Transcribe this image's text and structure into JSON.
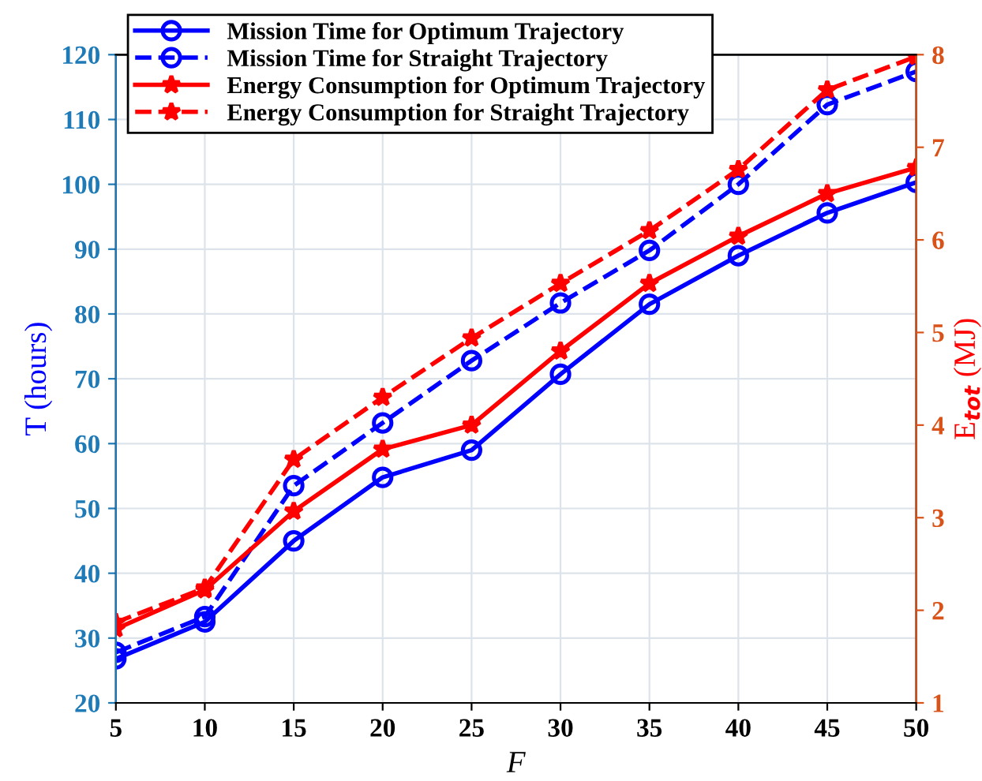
{
  "chart_data": {
    "type": "line",
    "xlabel": "F",
    "ylabel": "T (hours)",
    "y2label": "E$_{tot}$ (MJ)",
    "x": [
      5,
      10,
      15,
      20,
      25,
      30,
      35,
      40,
      45,
      50
    ],
    "xlim": [
      5,
      50
    ],
    "xticks": [
      5,
      10,
      15,
      20,
      25,
      30,
      35,
      40,
      45,
      50
    ],
    "ylim": [
      20,
      120
    ],
    "yticks": [
      20,
      30,
      40,
      50,
      60,
      70,
      80,
      90,
      100,
      110,
      120
    ],
    "y2lim": [
      1,
      8
    ],
    "y2ticks": [
      1,
      2,
      3,
      4,
      5,
      6,
      7,
      8
    ],
    "grid": true,
    "legend": "top left",
    "series": [
      {
        "name": "Mission Time for Optimum Trajectory",
        "color": "#0000ff",
        "marker": "circle",
        "line_style": "solid",
        "values": [
          26.8,
          32.5,
          45,
          54.8,
          59,
          70.7,
          81.5,
          89,
          95.6,
          100.3
        ]
      },
      {
        "name": "Mission Time for Straight Trajectory",
        "color": "#0000ff",
        "marker": "circle",
        "line_style": "dashed",
        "values": [
          27.8,
          33.3,
          53.5,
          63.2,
          72.8,
          81.7,
          89.8,
          100,
          112.3,
          117.4
        ]
      },
      {
        "name": "Energy Consumption for Optimum Trajectory",
        "color": "#ff0000",
        "marker": "star",
        "line_style": "solid",
        "axis": "y2",
        "values": [
          1.8,
          2.22,
          3.07,
          3.74,
          4.0,
          4.8,
          5.53,
          6.04,
          6.5,
          6.78
        ]
      },
      {
        "name": "Energy Consumption for Straight Trajectory",
        "color": "#ff0000",
        "marker": "star",
        "line_style": "dashed",
        "axis": "y2",
        "values": [
          1.87,
          2.24,
          3.63,
          4.3,
          4.94,
          5.53,
          6.1,
          6.76,
          7.62,
          7.98
        ]
      }
    ]
  }
}
